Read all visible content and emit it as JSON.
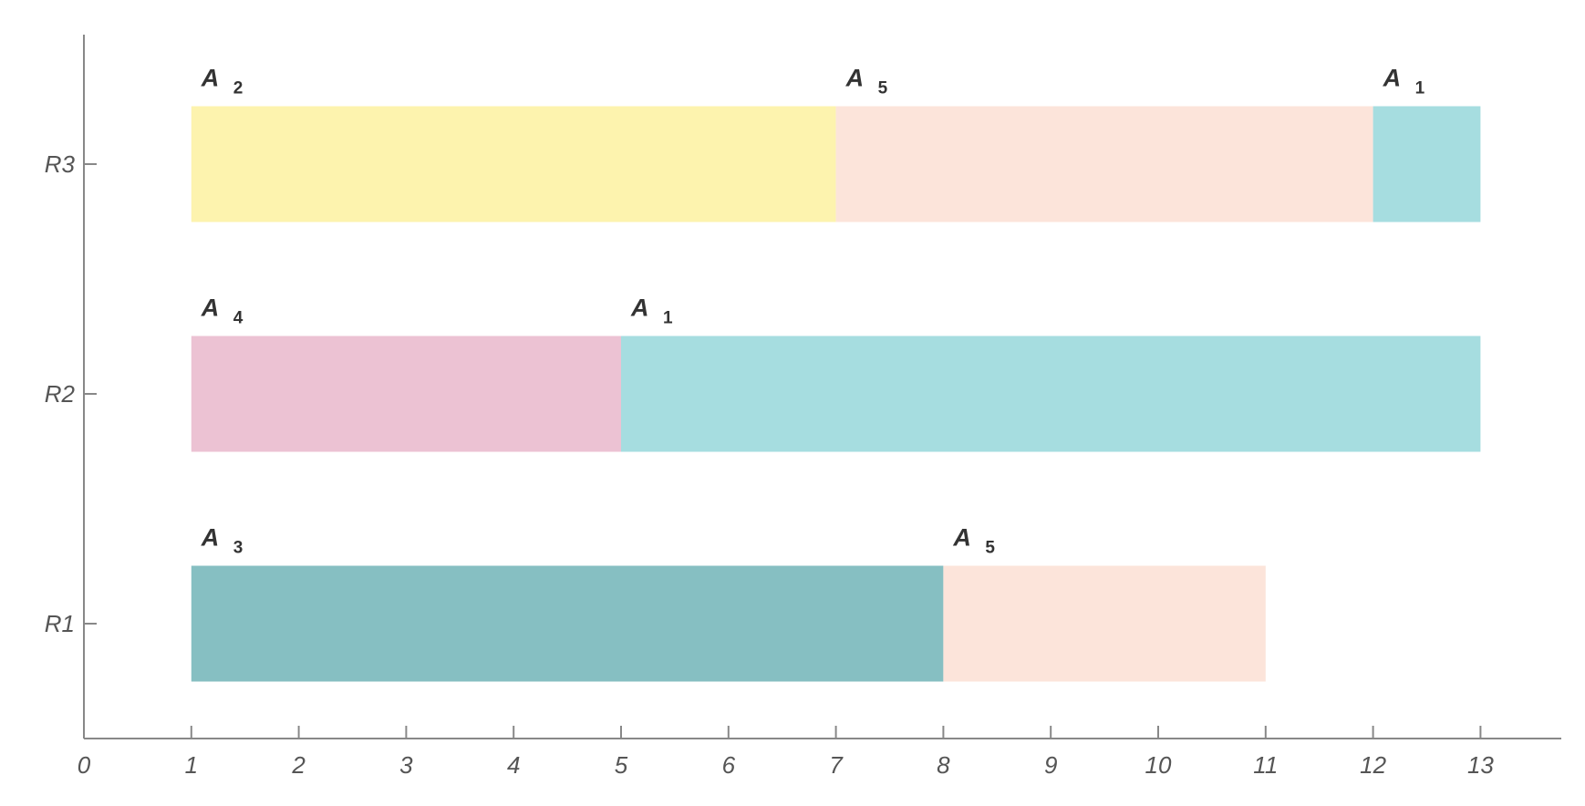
{
  "chart_data": {
    "type": "gantt",
    "xlim": [
      0,
      13.75
    ],
    "x_ticks": [
      "0",
      "1",
      "2",
      "3",
      "4",
      "5",
      "6",
      "7",
      "8",
      "9",
      "10",
      "11",
      "12",
      "13"
    ],
    "rows": [
      "R1",
      "R2",
      "R3"
    ],
    "colors": {
      "A1": "#a6dde0",
      "A2": "#fdf3ae",
      "A3": "#86bfc2",
      "A4": "#ecc2d3",
      "A5": "#fce4da"
    },
    "tasks": [
      {
        "row": "R3",
        "job": "A",
        "sub": "2",
        "key": "A2",
        "start": 1,
        "end": 7
      },
      {
        "row": "R3",
        "job": "A",
        "sub": "5",
        "key": "A5",
        "start": 7,
        "end": 12
      },
      {
        "row": "R3",
        "job": "A",
        "sub": "1",
        "key": "A1",
        "start": 12,
        "end": 13
      },
      {
        "row": "R2",
        "job": "A",
        "sub": "4",
        "key": "A4",
        "start": 1,
        "end": 5
      },
      {
        "row": "R2",
        "job": "A",
        "sub": "1",
        "key": "A1",
        "start": 5,
        "end": 13
      },
      {
        "row": "R1",
        "job": "A",
        "sub": "3",
        "key": "A3",
        "start": 1,
        "end": 8
      },
      {
        "row": "R1",
        "job": "A",
        "sub": "5",
        "key": "A5",
        "start": 8,
        "end": 11
      }
    ],
    "grid": false
  }
}
